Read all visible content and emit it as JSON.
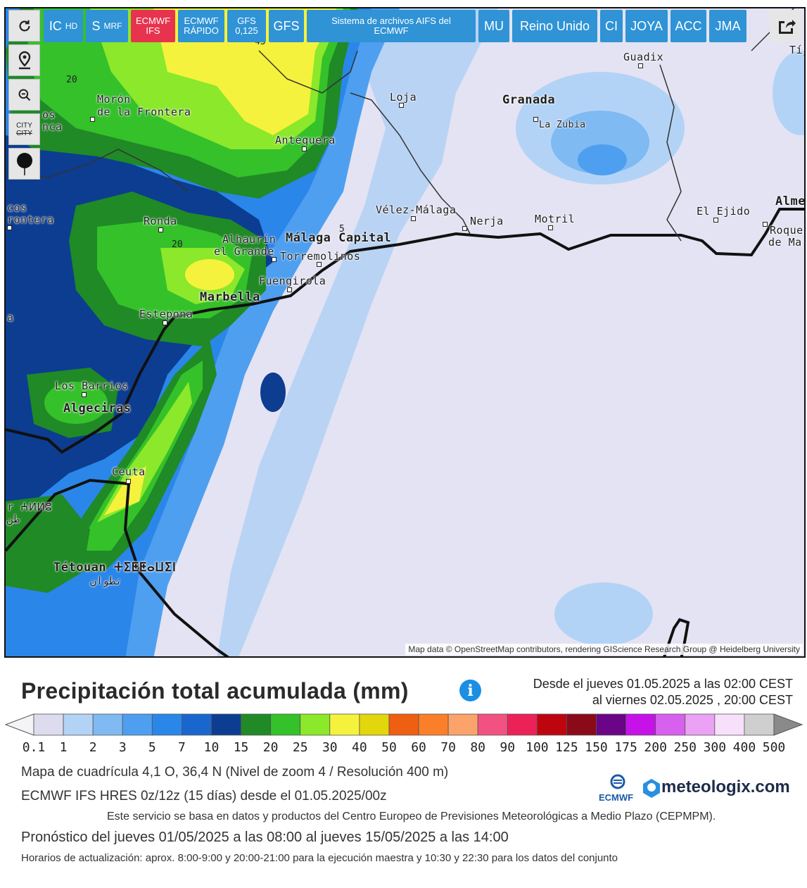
{
  "toolbar": {
    "buttons": [
      {
        "main": "IC",
        "sub": "HD"
      },
      {
        "main": "S",
        "sub": "MRF"
      },
      {
        "line1": "ECMWF",
        "line2": "IFS",
        "active": true
      },
      {
        "line1": "ECMWF",
        "line2": "RÁPIDO"
      },
      {
        "line1": "GFS",
        "line2": "0,125"
      },
      {
        "main": "GFS"
      },
      {
        "main": "Sistema de archivos AIFS del ECMWF"
      },
      {
        "main": "MU"
      },
      {
        "main": "Reino Unido"
      },
      {
        "main": "CI"
      },
      {
        "main": "JOYA"
      },
      {
        "main": "ACC"
      },
      {
        "main": "JMA"
      }
    ]
  },
  "sidebar": {
    "reload_icon": "reload-icon",
    "location_icon": "map-pin-icon",
    "zoom_icon": "zoom-out-icon",
    "city_toggle_top": "CITY",
    "city_toggle_bottom": "CITY",
    "point_icon": "marker-dot-icon"
  },
  "share_icon": "share-icon",
  "map": {
    "attribution": "Map data © OpenStreetMap contributors, rendering GIScience Research Group @ Heidelberg University",
    "cities": [
      {
        "name": "Guadix"
      },
      {
        "name": "Loja"
      },
      {
        "name": "Granada"
      },
      {
        "name": "La Zubia"
      },
      {
        "name": "Morón"
      },
      {
        "name": "de la Frontera"
      },
      {
        "name": "Antequera"
      },
      {
        "name": "Vélez-Málaga"
      },
      {
        "name": "Nerja"
      },
      {
        "name": "Motril"
      },
      {
        "name": "El Ejido"
      },
      {
        "name": "Alme"
      },
      {
        "name": "Roque"
      },
      {
        "name": "de Ma"
      },
      {
        "name": "Ronda"
      },
      {
        "name": "Alhaurín"
      },
      {
        "name": "el Grande"
      },
      {
        "name": "Málaga Capital"
      },
      {
        "name": "Torremolinos"
      },
      {
        "name": "Fuengirola"
      },
      {
        "name": "Marbella"
      },
      {
        "name": "Estepona"
      },
      {
        "name": "Los Barrios"
      },
      {
        "name": "Algeciras"
      },
      {
        "name": "Ceuta"
      },
      {
        "name": "Tétouan ⵜⵉⵟⵟⴰⵡⵉⵏ"
      },
      {
        "name": "تطوان"
      },
      {
        "name": "cos"
      },
      {
        "name": "rontera"
      },
      {
        "name": "os"
      },
      {
        "name": "nca"
      },
      {
        "name": "r ⵄⵍⵍⵓ"
      },
      {
        "name": "طن"
      },
      {
        "name": "a"
      },
      {
        "name": "Tíj"
      }
    ],
    "isolines": [
      "20",
      "20",
      "5",
      "45"
    ]
  },
  "legend": {
    "title": "Precipitación total acumulada (mm)",
    "info_icon": "i",
    "period_line1": "Desde el jueves 01.05.2025 a  las 02:00  CEST",
    "period_line2": "al viernes 02.05.2025 ,  20:00  CEST",
    "ticks": [
      "0.1",
      "1",
      "2",
      "3",
      "5",
      "7",
      "10",
      "15",
      "20",
      "25",
      "30",
      "40",
      "50",
      "60",
      "70",
      "80",
      "90",
      "100",
      "125",
      "150",
      "175",
      "200",
      "250",
      "300",
      "400",
      "500"
    ],
    "colors": [
      "#dcdcee",
      "#b3d3f6",
      "#7fbaf2",
      "#4e9ff0",
      "#2b86ea",
      "#1a66cf",
      "#0c3d91",
      "#1f8a26",
      "#35c12a",
      "#8be82a",
      "#f5f23d",
      "#e2d60c",
      "#ef5f12",
      "#fb7f28",
      "#fba36b",
      "#f25281",
      "#ec2157",
      "#bd0510",
      "#8a0a19",
      "#6a0587",
      "#c612e8",
      "#d860ee",
      "#eba2f4",
      "#f7e1fa",
      "#cfcfcf"
    ]
  },
  "footer": {
    "grid": "Mapa de cuadrícula 4,1 O, 36,4 N  (Nivel de zoom 4 / Resolución 400 m)",
    "model": "ECMWF IFS HRES 0z/12z  (15 días)  desde el 01.05.2025/00z",
    "service": "Este servicio se basa en datos y productos del Centro Europeo de Previsiones Meteorológicas a Medio Plazo  (CEPMPM).",
    "forecast": "Pronóstico del jueves 01/05/2025 a las 08:00 al jueves 15/05/2025 a las 14:00",
    "update": "Horarios de actualización: aprox. 8:00-9:00 y 20:00-21:00 para la ejecución maestra y 10:30 y 22:30 para los datos del conjunto",
    "logo_ecmwf": "ECMWF",
    "logo_meteologix": "meteologix.com"
  }
}
